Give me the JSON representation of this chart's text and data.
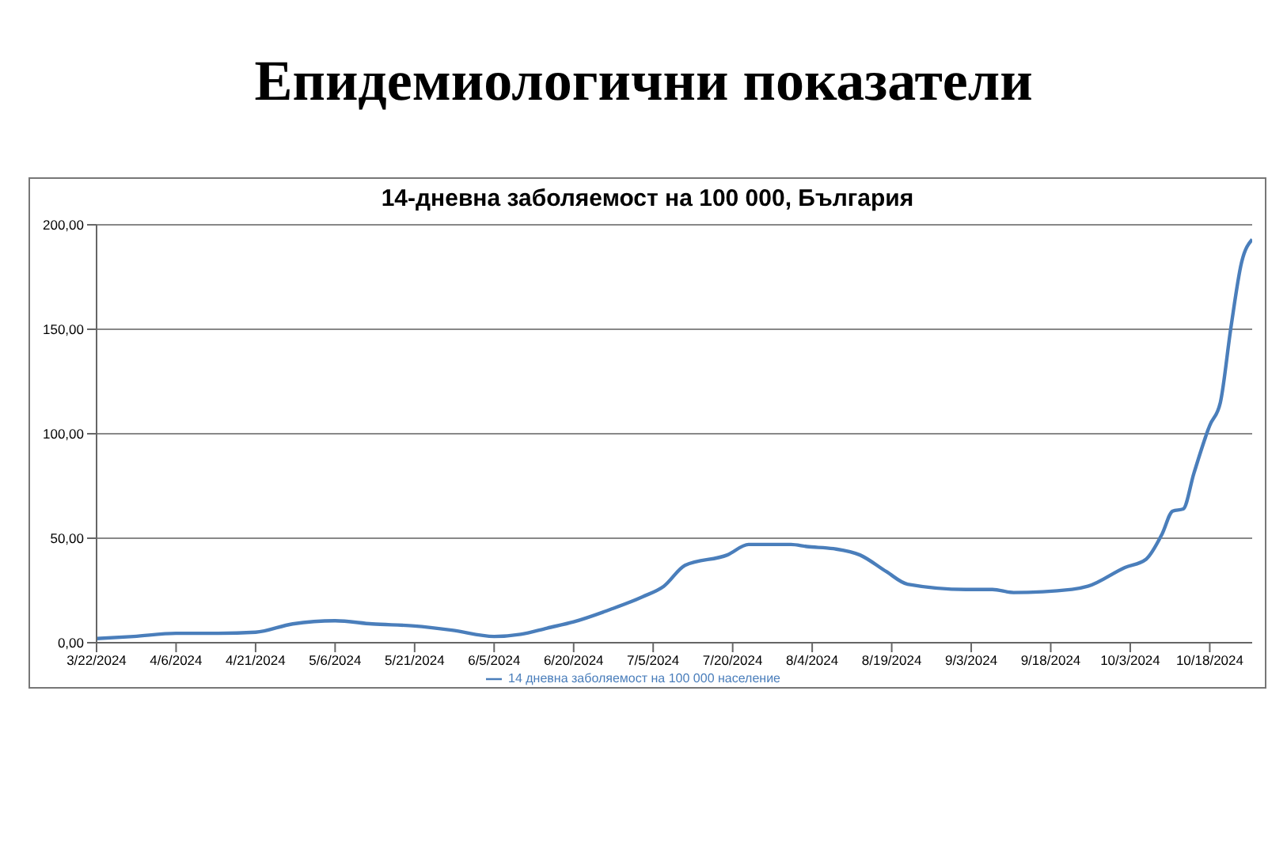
{
  "chart_data": {
    "type": "line",
    "title": "Епидемиологични показатели",
    "subtitle": "14-дневна заболяемост на 100 000, България",
    "x": [
      "2024-03-22",
      "2024-03-29",
      "2024-04-06",
      "2024-04-14",
      "2024-04-21",
      "2024-04-28",
      "2024-05-06",
      "2024-05-13",
      "2024-05-21",
      "2024-05-28",
      "2024-06-05",
      "2024-06-10",
      "2024-06-15",
      "2024-06-20",
      "2024-06-27",
      "2024-07-03",
      "2024-07-07",
      "2024-07-11",
      "2024-07-19",
      "2024-07-23",
      "2024-07-31",
      "2024-08-03",
      "2024-08-08",
      "2024-08-13",
      "2024-08-18",
      "2024-08-22",
      "2024-09-02",
      "2024-09-07",
      "2024-09-11",
      "2024-09-22",
      "2024-09-25",
      "2024-10-02",
      "2024-10-06",
      "2024-10-09",
      "2024-10-11",
      "2024-10-13",
      "2024-10-15",
      "2024-10-18",
      "2024-10-20",
      "2024-10-22",
      "2024-10-24",
      "2024-10-26"
    ],
    "series": [
      {
        "name": "14 дневна заболяемост на 100 000 население",
        "color": "#4a7ebb",
        "values": [
          2,
          3,
          4.5,
          4.5,
          5,
          9,
          10.5,
          9,
          8,
          6,
          3,
          4,
          7,
          10,
          16,
          22,
          27,
          37,
          42,
          47,
          47,
          46,
          45,
          42,
          34,
          28,
          25.5,
          25.5,
          24,
          25.5,
          27,
          36,
          40,
          52,
          63,
          64,
          81,
          104,
          115,
          151,
          182,
          193
        ]
      }
    ],
    "xlim": [
      "2024-03-22",
      "2024-10-26"
    ],
    "xticks": [
      {
        "value": "2024-03-22",
        "label": "3/22/2024"
      },
      {
        "value": "2024-04-06",
        "label": "4/6/2024"
      },
      {
        "value": "2024-04-21",
        "label": "4/21/2024"
      },
      {
        "value": "2024-05-06",
        "label": "5/6/2024"
      },
      {
        "value": "2024-05-21",
        "label": "5/21/2024"
      },
      {
        "value": "2024-06-05",
        "label": "6/5/2024"
      },
      {
        "value": "2024-06-20",
        "label": "6/20/2024"
      },
      {
        "value": "2024-07-05",
        "label": "7/5/2024"
      },
      {
        "value": "2024-07-20",
        "label": "7/20/2024"
      },
      {
        "value": "2024-08-04",
        "label": "8/4/2024"
      },
      {
        "value": "2024-08-19",
        "label": "8/19/2024"
      },
      {
        "value": "2024-09-03",
        "label": "9/3/2024"
      },
      {
        "value": "2024-09-18",
        "label": "9/18/2024"
      },
      {
        "value": "2024-10-03",
        "label": "10/3/2024"
      },
      {
        "value": "2024-10-18",
        "label": "10/18/2024"
      }
    ],
    "ylim": [
      0,
      200
    ],
    "yticks": [
      {
        "value": 0,
        "label": "0,00"
      },
      {
        "value": 50,
        "label": "50,00"
      },
      {
        "value": 100,
        "label": "100,00"
      },
      {
        "value": 150,
        "label": "150,00"
      },
      {
        "value": 200,
        "label": "200,00"
      }
    ],
    "grid": "y",
    "legend": "bottom",
    "marker": "none",
    "line_style": "solid"
  }
}
